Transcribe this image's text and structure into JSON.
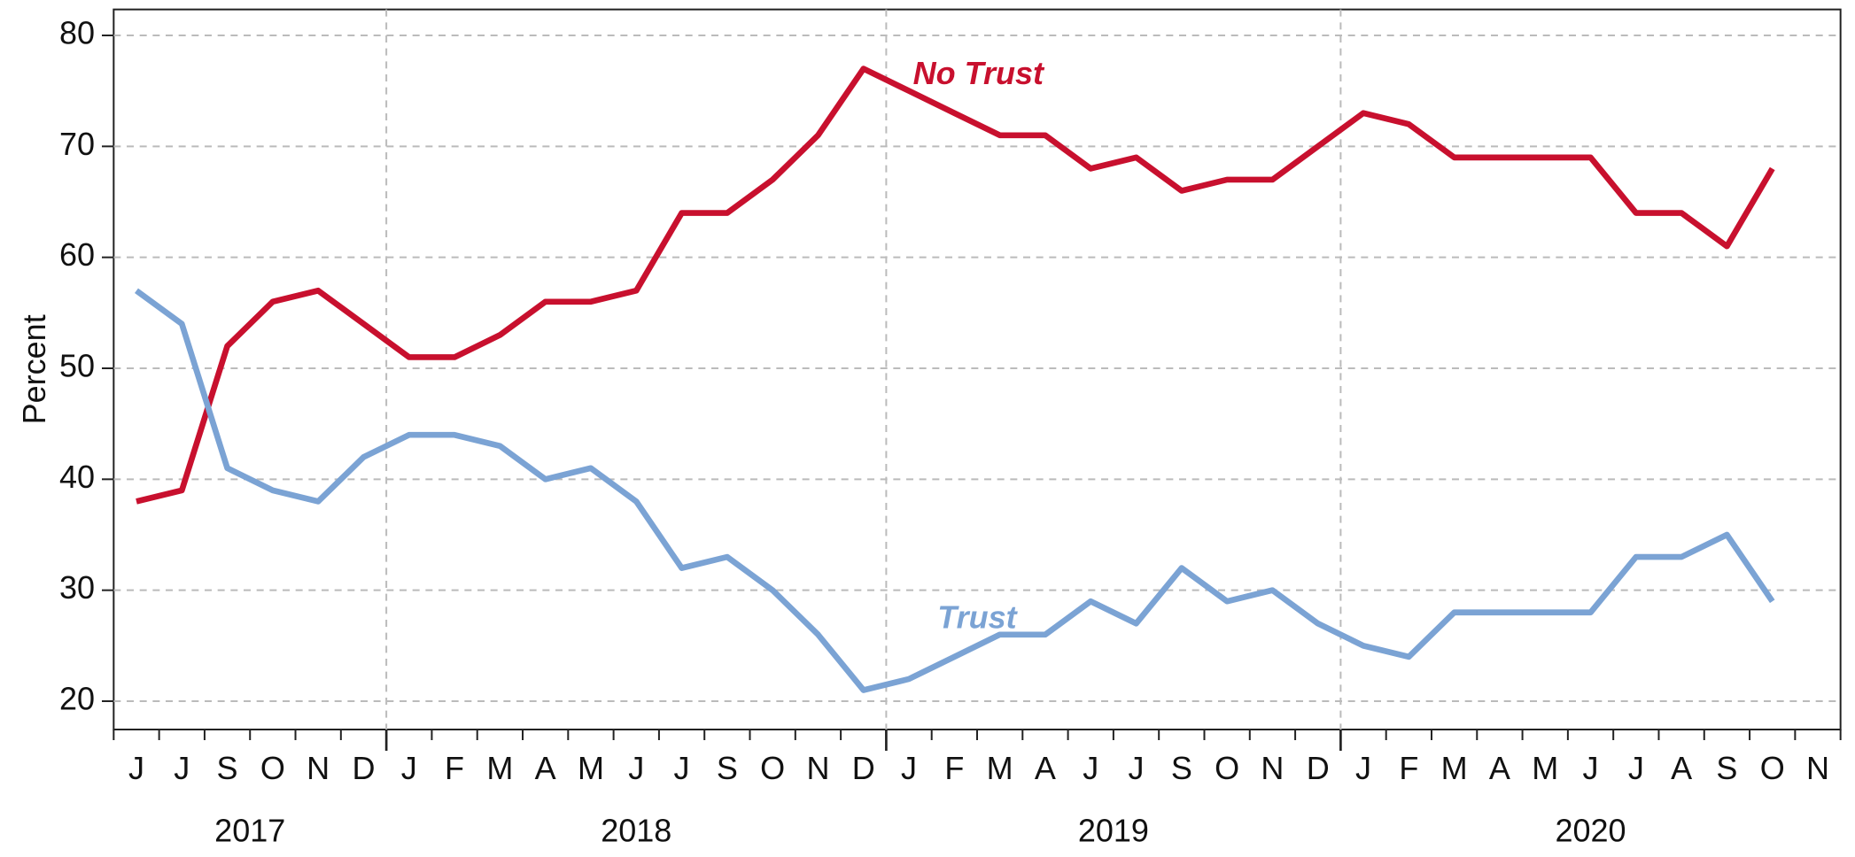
{
  "chart_data": {
    "type": "line",
    "y_label": "Percent",
    "categories": [
      "J",
      "J",
      "S",
      "O",
      "N",
      "D",
      "J",
      "F",
      "M",
      "A",
      "M",
      "J",
      "J",
      "S",
      "O",
      "N",
      "D",
      "J",
      "F",
      "M",
      "A",
      "J",
      "J",
      "S",
      "O",
      "N",
      "D",
      "J",
      "F",
      "M",
      "A",
      "M",
      "J",
      "J",
      "A",
      "S",
      "O",
      "N"
    ],
    "year_groups": [
      {
        "label": "2017",
        "months": 6
      },
      {
        "label": "2018",
        "months": 11
      },
      {
        "label": "2019",
        "months": 10
      },
      {
        "label": "2020",
        "months": 11
      }
    ],
    "series": [
      {
        "name": "No Trust",
        "color": "#c8102e",
        "values": [
          38,
          39,
          52,
          56,
          57,
          54,
          51,
          51,
          53,
          56,
          56,
          57,
          64,
          64,
          67,
          71,
          77,
          75,
          73,
          71,
          71,
          68,
          69,
          66,
          67,
          67,
          70,
          73,
          72,
          69,
          69,
          69,
          69,
          64,
          64,
          61,
          68,
          null
        ]
      },
      {
        "name": "Trust",
        "color": "#7ba3d4",
        "values": [
          57,
          54,
          41,
          39,
          38,
          42,
          44,
          44,
          43,
          40,
          41,
          38,
          32,
          33,
          30,
          26,
          21,
          22,
          24,
          26,
          26,
          29,
          27,
          32,
          29,
          30,
          27,
          25,
          24,
          28,
          28,
          28,
          28,
          33,
          33,
          35,
          29,
          null
        ]
      }
    ],
    "ylim": [
      20,
      80
    ],
    "yticks": [
      20,
      30,
      40,
      50,
      60,
      70,
      80
    ],
    "grid": true
  }
}
